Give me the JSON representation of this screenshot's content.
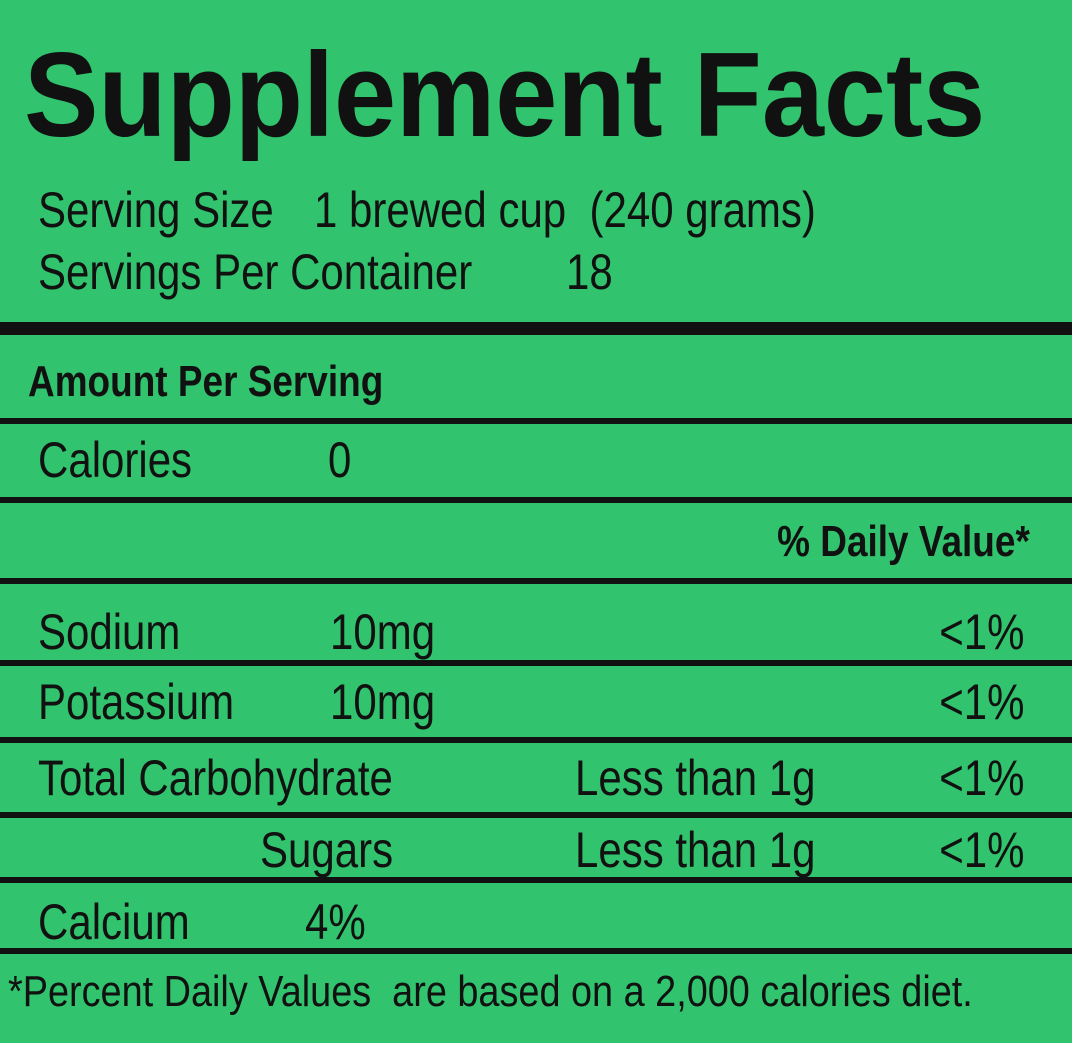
{
  "header": {
    "title": "Supplement Facts",
    "serving_size_label": "Serving Size",
    "serving_size": "1 brewed cup  (240 grams)",
    "servings_label": "Servings Per Container",
    "servings": "18"
  },
  "amount_per_serving": "Amount Per Serving",
  "calories": {
    "label": "Calories",
    "value": "0"
  },
  "daily_value_header": "% Daily Value*",
  "nutrients": [
    {
      "name": "Sodium",
      "amount": "10mg",
      "daily_value": "<1%"
    },
    {
      "name": "Potassium",
      "amount": "10mg",
      "daily_value": "<1%"
    },
    {
      "name": "Total Carbohydrate",
      "amount": "Less than 1g",
      "daily_value": "<1%"
    },
    {
      "name": "Sugars",
      "amount": "Less than 1g",
      "daily_value": "<1%"
    },
    {
      "name": "Calcium",
      "amount": "4%"
    }
  ],
  "footnote": "*Percent Daily Values  are based on a 2,000 calories diet."
}
